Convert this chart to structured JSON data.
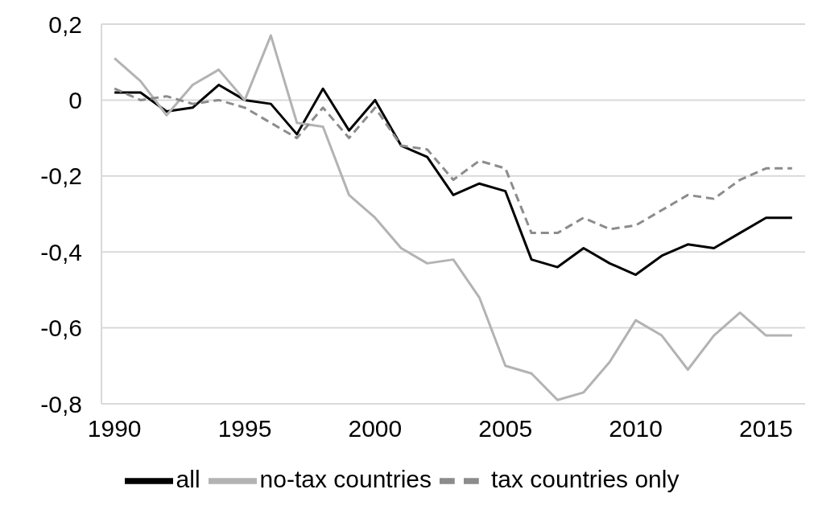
{
  "chart_data": {
    "type": "line",
    "x": [
      1990,
      1991,
      1992,
      1993,
      1994,
      1995,
      1996,
      1997,
      1998,
      1999,
      2000,
      2001,
      2002,
      2003,
      2004,
      2005,
      2006,
      2007,
      2008,
      2009,
      2010,
      2011,
      2012,
      2013,
      2014,
      2015,
      2016
    ],
    "series": [
      {
        "name": "all",
        "color": "#000000",
        "values": [
          0.02,
          0.02,
          -0.03,
          -0.02,
          0.04,
          0.0,
          -0.01,
          -0.09,
          0.03,
          -0.08,
          0.0,
          -0.12,
          -0.15,
          -0.25,
          -0.22,
          -0.24,
          -0.42,
          -0.44,
          -0.39,
          -0.43,
          -0.46,
          -0.41,
          -0.38,
          -0.39,
          -0.35,
          -0.31,
          -0.31
        ]
      },
      {
        "name": "no-tax countries",
        "color": "#b3b3b3",
        "values": [
          0.11,
          0.05,
          -0.04,
          0.04,
          0.08,
          0.0,
          0.17,
          -0.06,
          -0.07,
          -0.25,
          -0.31,
          -0.39,
          -0.43,
          -0.42,
          -0.52,
          -0.7,
          -0.72,
          -0.79,
          -0.77,
          -0.69,
          -0.58,
          -0.62,
          -0.71,
          -0.62,
          -0.56,
          -0.62,
          -0.62
        ]
      },
      {
        "name": "tax countries only",
        "color": "#8c8c8c",
        "line_style": "dashed",
        "values": [
          0.03,
          0.0,
          0.01,
          -0.01,
          0.0,
          -0.02,
          -0.06,
          -0.1,
          -0.02,
          -0.1,
          -0.02,
          -0.12,
          -0.13,
          -0.21,
          -0.16,
          -0.18,
          -0.35,
          -0.35,
          -0.31,
          -0.34,
          -0.33,
          -0.29,
          -0.25,
          -0.26,
          -0.21,
          -0.18,
          -0.18
        ]
      }
    ],
    "xlim": [
      1989.5,
      2016.5
    ],
    "xticks": [
      1990,
      1995,
      2000,
      2005,
      2010,
      2015
    ],
    "ylim": [
      -0.8,
      0.2
    ],
    "yticks": [
      {
        "value": -0.8,
        "label": "-0,8"
      },
      {
        "value": -0.6,
        "label": "-0,6"
      },
      {
        "value": -0.4,
        "label": "-0,4"
      },
      {
        "value": -0.2,
        "label": "-0,2"
      },
      0,
      {
        "value": 0.2,
        "label": "0,2"
      }
    ],
    "grid": "y",
    "legend": "bottom",
    "marker": "none",
    "line_style": "solid"
  }
}
